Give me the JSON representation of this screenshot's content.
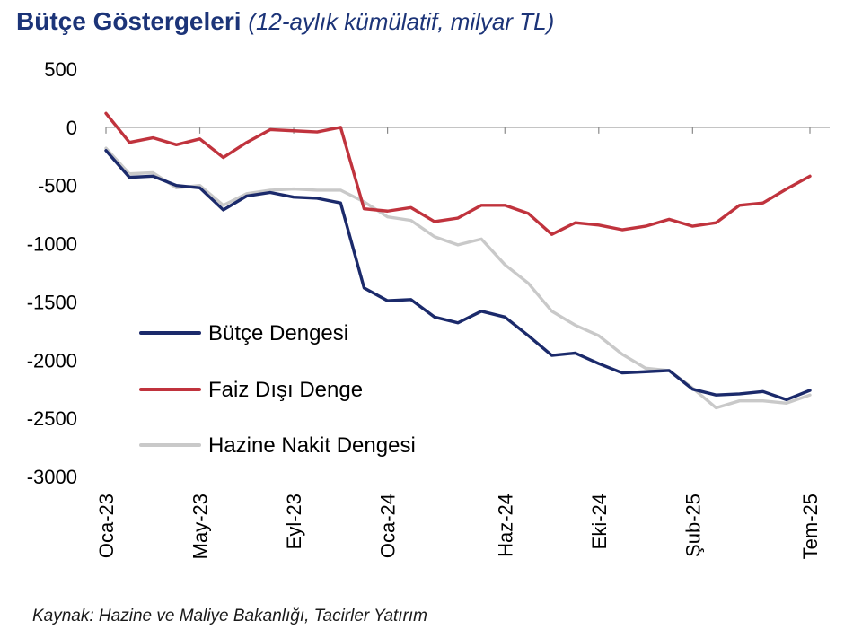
{
  "title": {
    "main": "Bütçe Göstergeleri",
    "sub": "(12-aylık kümülatif, milyar TL)"
  },
  "source": "Kaynak: Hazine ve Maliye Bakanlığı, Tacirler Yatırım",
  "colors": {
    "title": "#1c3478",
    "butce": "#1b2a6b",
    "faiz": "#c0333d",
    "nakit": "#c9c9c9"
  },
  "chart_data": {
    "type": "line",
    "x": [
      "Oca-23",
      "Şub-23",
      "Mar-23",
      "Nis-23",
      "May-23",
      "Haz-23",
      "Tem-23",
      "Ağu-23",
      "Eyl-23",
      "Eki-23",
      "Kas-23",
      "Ara-23",
      "Oca-24",
      "Şub-24",
      "Mar-24",
      "Nis-24",
      "May-24",
      "Haz-24",
      "Tem-24",
      "Ağu-24",
      "Eyl-24",
      "Eki-24",
      "Kas-24",
      "Ara-24",
      "Oca-25",
      "Şub-25",
      "Mar-25",
      "Nis-25",
      "May-25",
      "Haz-25",
      "Tem-25"
    ],
    "x_tick_labels": [
      "Oca-23",
      "May-23",
      "Eyl-23",
      "Oca-24",
      "Haz-24",
      "Eki-24",
      "Şub-25",
      "Tem-25"
    ],
    "ylim": [
      -3000,
      500
    ],
    "y_ticks": [
      500,
      0,
      -500,
      -1000,
      -1500,
      -2000,
      -2500,
      -3000
    ],
    "grid": false,
    "legend_position": "left-lower",
    "series": [
      {
        "name": "Bütçe Dengesi",
        "color": "#1b2a6b",
        "values": [
          -200,
          -430,
          -420,
          -500,
          -520,
          -710,
          -590,
          -560,
          -600,
          -610,
          -650,
          -1380,
          -1490,
          -1480,
          -1630,
          -1680,
          -1580,
          -1630,
          -1790,
          -1960,
          -1940,
          -2030,
          -2110,
          -2100,
          -2090,
          -2250,
          -2300,
          -2290,
          -2270,
          -2340,
          -2260
        ]
      },
      {
        "name": "Faiz Dışı Denge",
        "color": "#c0333d",
        "values": [
          120,
          -130,
          -90,
          -150,
          -100,
          -260,
          -130,
          -20,
          -30,
          -40,
          0,
          -700,
          -720,
          -690,
          -810,
          -780,
          -670,
          -670,
          -740,
          -920,
          -820,
          -840,
          -880,
          -850,
          -790,
          -850,
          -820,
          -670,
          -650,
          -530,
          -420
        ]
      },
      {
        "name": "Hazine Nakit Dengesi",
        "color": "#c9c9c9",
        "values": [
          -180,
          -400,
          -390,
          -520,
          -500,
          -670,
          -570,
          -540,
          -530,
          -540,
          -540,
          -640,
          -770,
          -800,
          -940,
          -1010,
          -960,
          -1180,
          -1340,
          -1580,
          -1700,
          -1790,
          -1950,
          -2070,
          -2090,
          -2240,
          -2410,
          -2350,
          -2350,
          -2370,
          -2300
        ]
      }
    ]
  }
}
